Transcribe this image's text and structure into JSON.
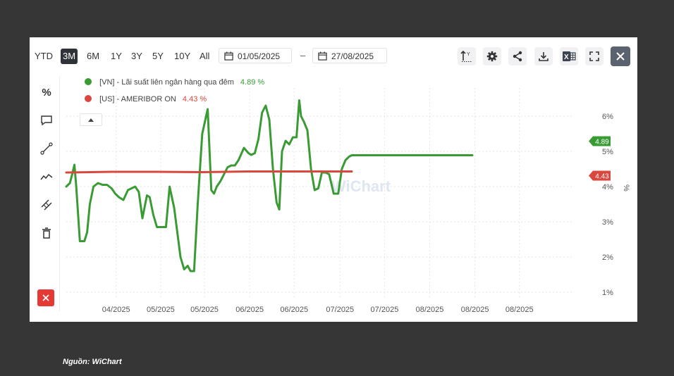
{
  "toolbar": {
    "ranges": [
      "YTD",
      "3M",
      "6M",
      "1Y",
      "3Y",
      "5Y",
      "10Y",
      "All"
    ],
    "active_range": "3M",
    "date_from": "01/05/2025",
    "date_separator": "–",
    "date_to": "27/08/2025",
    "icons": [
      "axis-scale-icon",
      "settings-gear-icon",
      "share-icon",
      "download-icon",
      "excel-export-icon",
      "fullscreen-icon",
      "close-icon"
    ]
  },
  "side_tools": {
    "percent_label": "%",
    "icons": [
      "percent-icon",
      "comment-icon",
      "trendline-icon",
      "line-chart-icon",
      "measure-icon",
      "trash-icon",
      "delete-icon"
    ]
  },
  "watermark": "WiChart",
  "source": "Nguồn: WiChart",
  "colors": {
    "vn": "#3a9b35",
    "us": "#d9473e",
    "panel_bg": "#ffffff",
    "page_bg": "#363636"
  },
  "chart_data": {
    "type": "line",
    "y_unit_label": "%",
    "y_ticks": [
      "1%",
      "2%",
      "3%",
      "4%",
      "5%",
      "6%"
    ],
    "ylim": [
      0.8,
      6.8
    ],
    "x_ticks": [
      "04/2025",
      "05/2025",
      "05/2025",
      "06/2025",
      "06/2025",
      "07/2025",
      "07/2025",
      "08/2025",
      "08/2025",
      "08/2025"
    ],
    "grid": true,
    "legend_position": "top-left",
    "series": [
      {
        "name": "[VN] - Lãi suất liên ngân hàng qua đêm",
        "last_value_label": "4.89 %",
        "badge": "4.89",
        "color": "#3a9b35",
        "x": [
          0.0,
          0.2,
          0.4,
          0.6,
          0.9,
          1.1,
          1.5,
          2.0,
          2.3,
          2.6,
          3.0,
          3.5,
          4.0,
          4.5,
          5.0,
          5.4,
          5.8,
          6.3,
          6.8,
          7.2,
          7.6,
          8.0,
          8.4,
          8.9,
          9.2,
          9.6,
          10.0,
          10.5,
          11.0,
          11.4,
          11.9,
          12.3,
          12.6,
          13.0,
          13.4,
          13.7,
          14.1,
          14.5,
          15.0,
          15.6,
          16.0,
          16.3,
          16.6,
          17.0,
          17.3,
          17.8,
          18.2,
          18.6,
          19.0,
          19.6,
          20.1,
          20.4,
          20.8,
          21.2,
          21.6,
          22.0,
          22.4,
          22.8,
          23.2,
          23.5,
          23.8,
          24.2,
          24.6,
          25.0,
          25.4,
          25.7,
          25.9,
          26.2,
          26.6,
          27.0,
          27.4,
          27.8,
          28.2,
          28.6,
          29.0,
          29.5,
          30.0,
          30.4,
          30.8,
          31.2,
          31.5,
          31.8,
          32.2,
          32.5,
          32.9,
          33.3,
          33.7,
          34.1,
          34.4,
          34.8,
          35.2,
          35.5,
          35.8,
          36.3,
          36.7,
          37.1,
          37.4,
          37.8,
          38.2,
          38.6,
          39.0,
          39.4,
          39.8,
          40.1,
          40.5,
          40.8,
          41.1,
          41.5,
          42.0,
          42.4,
          42.8,
          43.2,
          43.6,
          44.0,
          44.4,
          44.8
        ],
        "y": [
          4.0,
          4.05,
          4.1,
          4.3,
          4.62,
          4.0,
          2.45,
          2.45,
          2.7,
          3.5,
          4.0,
          4.1,
          4.05,
          4.05,
          3.95,
          3.8,
          3.7,
          3.62,
          3.9,
          3.95,
          4.0,
          3.85,
          3.1,
          3.75,
          3.7,
          3.2,
          2.85,
          2.85,
          2.85,
          4.0,
          3.4,
          2.6,
          2.0,
          1.65,
          1.75,
          1.6,
          1.6,
          3.5,
          5.5,
          6.2,
          3.9,
          3.8,
          4.0,
          4.15,
          4.3,
          4.55,
          4.6,
          4.6,
          4.75,
          5.1,
          4.95,
          4.9,
          4.95,
          5.35,
          6.1,
          6.3,
          5.9,
          4.5,
          3.55,
          3.35,
          5.0,
          5.3,
          5.2,
          5.4,
          5.4,
          6.45,
          6.0,
          5.85,
          5.6,
          4.5,
          3.9,
          3.95,
          4.4,
          4.4,
          4.35,
          3.8,
          3.8,
          4.5,
          4.75,
          4.85,
          4.89,
          4.89,
          4.89,
          4.89,
          4.89,
          4.89,
          4.89,
          4.89,
          4.89,
          4.89,
          4.89,
          4.89,
          4.89,
          4.89,
          4.89,
          4.89,
          4.89,
          4.89,
          4.89,
          4.89,
          4.89,
          4.89,
          4.89,
          4.89,
          4.89,
          4.89,
          4.89,
          4.89,
          4.89,
          4.89,
          4.89,
          4.89,
          4.89,
          4.89,
          4.89,
          4.89
        ]
      },
      {
        "name": "[US] - AMERIBOR ON",
        "last_value_label": "4.43 %",
        "badge": "4.43",
        "color": "#d9473e",
        "x": [
          0.0,
          5.0,
          10.0,
          15.0,
          20.0,
          25.0,
          31.5
        ],
        "y": [
          4.4,
          4.42,
          4.42,
          4.41,
          4.43,
          4.43,
          4.43
        ]
      }
    ]
  }
}
